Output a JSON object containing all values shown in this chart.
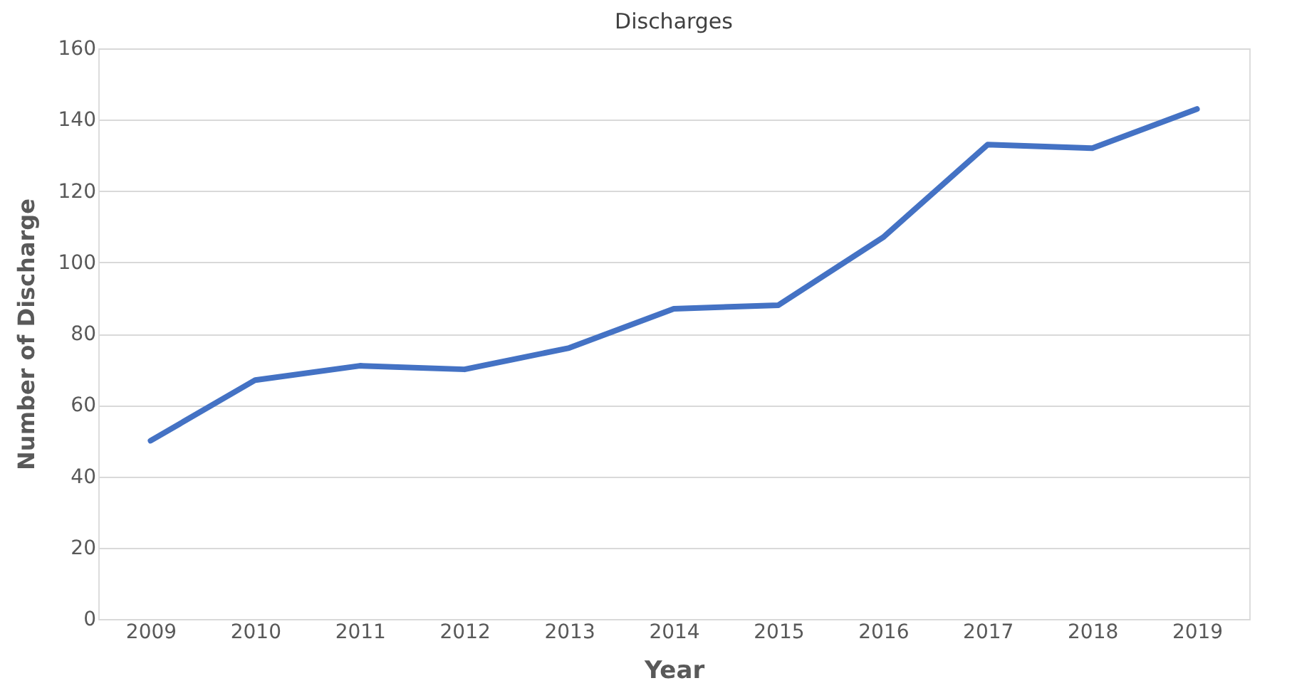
{
  "chart_data": {
    "type": "line",
    "title": "Discharges",
    "xlabel": "Year",
    "ylabel": "Number of Discharge",
    "categories": [
      "2009",
      "2010",
      "2011",
      "2012",
      "2013",
      "2014",
      "2015",
      "2016",
      "2017",
      "2018",
      "2019"
    ],
    "series": [
      {
        "color": "#4472c4",
        "values": [
          50,
          67,
          71,
          70,
          76,
          87,
          88,
          107,
          133,
          132,
          143
        ]
      }
    ],
    "ylim": [
      0,
      160
    ],
    "yticks": [
      0,
      20,
      40,
      60,
      80,
      100,
      120,
      140,
      160
    ],
    "grid": "y",
    "marker": "none",
    "line_style": "solid"
  }
}
